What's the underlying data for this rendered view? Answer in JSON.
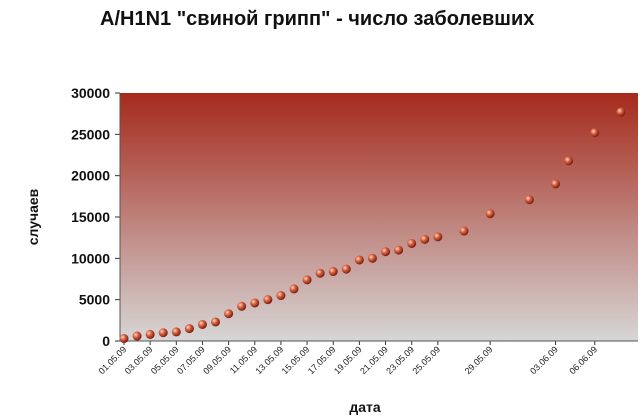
{
  "chart_data": {
    "type": "scatter",
    "title": "A/H1N1 \"свиной грипп\" - число заболевших",
    "xlabel": "дата",
    "ylabel": "случаев",
    "ylim": [
      0,
      30000
    ],
    "yticks": [
      "0",
      "5000",
      "10000",
      "15000",
      "20000",
      "25000",
      "30000"
    ],
    "xtick_labels": [
      "01.05.09",
      "03.05.09",
      "05.05.09",
      "07.05.09",
      "09.05.09",
      "11.05.09",
      "13.05.09",
      "15.05.09",
      "17.05.09",
      "19.05.09",
      "21.05.09",
      "23.05.09",
      "25.05.09",
      "29.05.09",
      "03.06.09",
      "06.06.09"
    ],
    "grid": false,
    "legend": "none",
    "colors": {
      "plot_top": "#a52a1c",
      "plot_bottom": "#d6d6d6",
      "marker": "#c8452c"
    },
    "points": [
      {
        "x": "01.05.09",
        "y": 300
      },
      {
        "x": "02.05.09",
        "y": 600
      },
      {
        "x": "03.05.09",
        "y": 800
      },
      {
        "x": "04.05.09",
        "y": 1000
      },
      {
        "x": "05.05.09",
        "y": 1100
      },
      {
        "x": "06.05.09",
        "y": 1500
      },
      {
        "x": "07.05.09",
        "y": 2000
      },
      {
        "x": "08.05.09",
        "y": 2300
      },
      {
        "x": "09.05.09",
        "y": 3300
      },
      {
        "x": "10.05.09",
        "y": 4200
      },
      {
        "x": "11.05.09",
        "y": 4600
      },
      {
        "x": "12.05.09",
        "y": 5000
      },
      {
        "x": "13.05.09",
        "y": 5500
      },
      {
        "x": "14.05.09",
        "y": 6300
      },
      {
        "x": "15.05.09",
        "y": 7400
      },
      {
        "x": "16.05.09",
        "y": 8200
      },
      {
        "x": "17.05.09",
        "y": 8400
      },
      {
        "x": "18.05.09",
        "y": 8700
      },
      {
        "x": "19.05.09",
        "y": 9800
      },
      {
        "x": "20.05.09",
        "y": 10000
      },
      {
        "x": "21.05.09",
        "y": 10800
      },
      {
        "x": "22.05.09",
        "y": 11000
      },
      {
        "x": "23.05.09",
        "y": 11800
      },
      {
        "x": "24.05.09",
        "y": 12300
      },
      {
        "x": "25.05.09",
        "y": 12600
      },
      {
        "x": "27.05.09",
        "y": 13300
      },
      {
        "x": "29.05.09",
        "y": 15400
      },
      {
        "x": "01.06.09",
        "y": 17100
      },
      {
        "x": "03.06.09",
        "y": 19000
      },
      {
        "x": "04.06.09",
        "y": 21800
      },
      {
        "x": "06.06.09",
        "y": 25200
      },
      {
        "x": "08.06.09",
        "y": 27700
      }
    ]
  }
}
